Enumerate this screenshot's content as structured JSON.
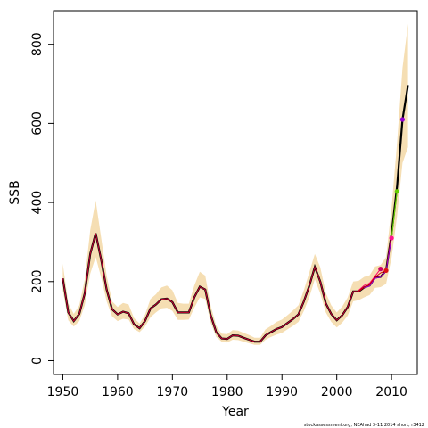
{
  "chart_data": {
    "type": "line",
    "title": "",
    "xlabel": "Year",
    "ylabel": "SSB",
    "xlim": [
      1948.3,
      2014.7
    ],
    "ylim": [
      -35,
      885
    ],
    "xticks": [
      1950,
      1960,
      1970,
      1980,
      1990,
      2000,
      2010
    ],
    "yticks": [
      0,
      200,
      400,
      600,
      800
    ],
    "grid": false,
    "legend": "none",
    "footnote": "stockassessment.org, NEAhad 3-11 2014 short, r3412",
    "colors": {
      "band": "#f5deb3",
      "estimate": "#000000",
      "retro": "#cc0033",
      "endpoints": [
        "#ff0066",
        "#cc0000",
        "#9900cc",
        "#ff1493",
        "#66cc00",
        "#9400d3"
      ]
    },
    "years": [
      1950,
      1951,
      1952,
      1953,
      1954,
      1955,
      1956,
      1957,
      1958,
      1959,
      1960,
      1961,
      1962,
      1963,
      1964,
      1965,
      1966,
      1967,
      1968,
      1969,
      1970,
      1971,
      1972,
      1973,
      1974,
      1975,
      1976,
      1977,
      1978,
      1979,
      1980,
      1981,
      1982,
      1983,
      1984,
      1985,
      1986,
      1987,
      1988,
      1989,
      1990,
      1991,
      1992,
      1993,
      1994,
      1995,
      1996,
      1997,
      1998,
      1999,
      2000,
      2001,
      2002,
      2003,
      2004,
      2005,
      2006,
      2007,
      2008,
      2009,
      2010,
      2011,
      2012,
      2013
    ],
    "ssb": [
      208,
      122,
      100,
      118,
      170,
      270,
      322,
      255,
      180,
      130,
      117,
      124,
      120,
      92,
      82,
      100,
      132,
      142,
      155,
      157,
      148,
      122,
      122,
      122,
      160,
      187,
      180,
      115,
      72,
      56,
      55,
      64,
      63,
      58,
      53,
      48,
      48,
      64,
      72,
      80,
      85,
      95,
      105,
      117,
      150,
      190,
      237,
      200,
      145,
      118,
      102,
      115,
      136,
      175,
      175,
      185,
      190,
      210,
      212,
      228,
      320,
      440,
      610,
      697
    ],
    "lower": [
      178,
      102,
      86,
      100,
      140,
      220,
      262,
      210,
      150,
      112,
      100,
      106,
      104,
      80,
      72,
      86,
      110,
      122,
      132,
      134,
      126,
      103,
      103,
      104,
      134,
      160,
      156,
      96,
      60,
      48,
      46,
      53,
      52,
      48,
      44,
      40,
      40,
      53,
      60,
      66,
      70,
      79,
      88,
      98,
      126,
      161,
      206,
      170,
      122,
      98,
      84,
      96,
      114,
      150,
      153,
      160,
      166,
      184,
      186,
      194,
      260,
      365,
      500,
      540
    ],
    "upper": [
      245,
      145,
      118,
      140,
      205,
      330,
      405,
      310,
      215,
      150,
      136,
      146,
      142,
      108,
      94,
      116,
      156,
      168,
      185,
      190,
      178,
      146,
      144,
      144,
      190,
      225,
      215,
      139,
      88,
      68,
      67,
      77,
      76,
      70,
      65,
      58,
      58,
      79,
      88,
      98,
      104,
      115,
      127,
      140,
      178,
      224,
      270,
      236,
      171,
      140,
      122,
      137,
      160,
      200,
      202,
      212,
      216,
      238,
      242,
      262,
      385,
      550,
      740,
      852
    ],
    "retro_peels": [
      {
        "years": [
          2004,
          2005,
          2006,
          2007,
          2008
        ],
        "values": [
          178,
          190,
          196,
          214,
          232
        ]
      },
      {
        "years": [
          2004,
          2005,
          2006,
          2007,
          2008,
          2009
        ],
        "values": [
          176,
          186,
          193,
          211,
          222,
          228
        ]
      },
      {
        "years": [
          2005,
          2006,
          2007,
          2008,
          2009,
          2010
        ],
        "values": [
          184,
          189,
          208,
          212,
          226,
          310
        ]
      }
    ],
    "terminal_points": [
      {
        "year": 2008,
        "value": 232
      },
      {
        "year": 2009,
        "value": 228
      },
      {
        "year": 2010,
        "value": 310
      },
      {
        "year": 2011,
        "value": 428
      },
      {
        "year": 2012,
        "value": 610
      }
    ]
  }
}
